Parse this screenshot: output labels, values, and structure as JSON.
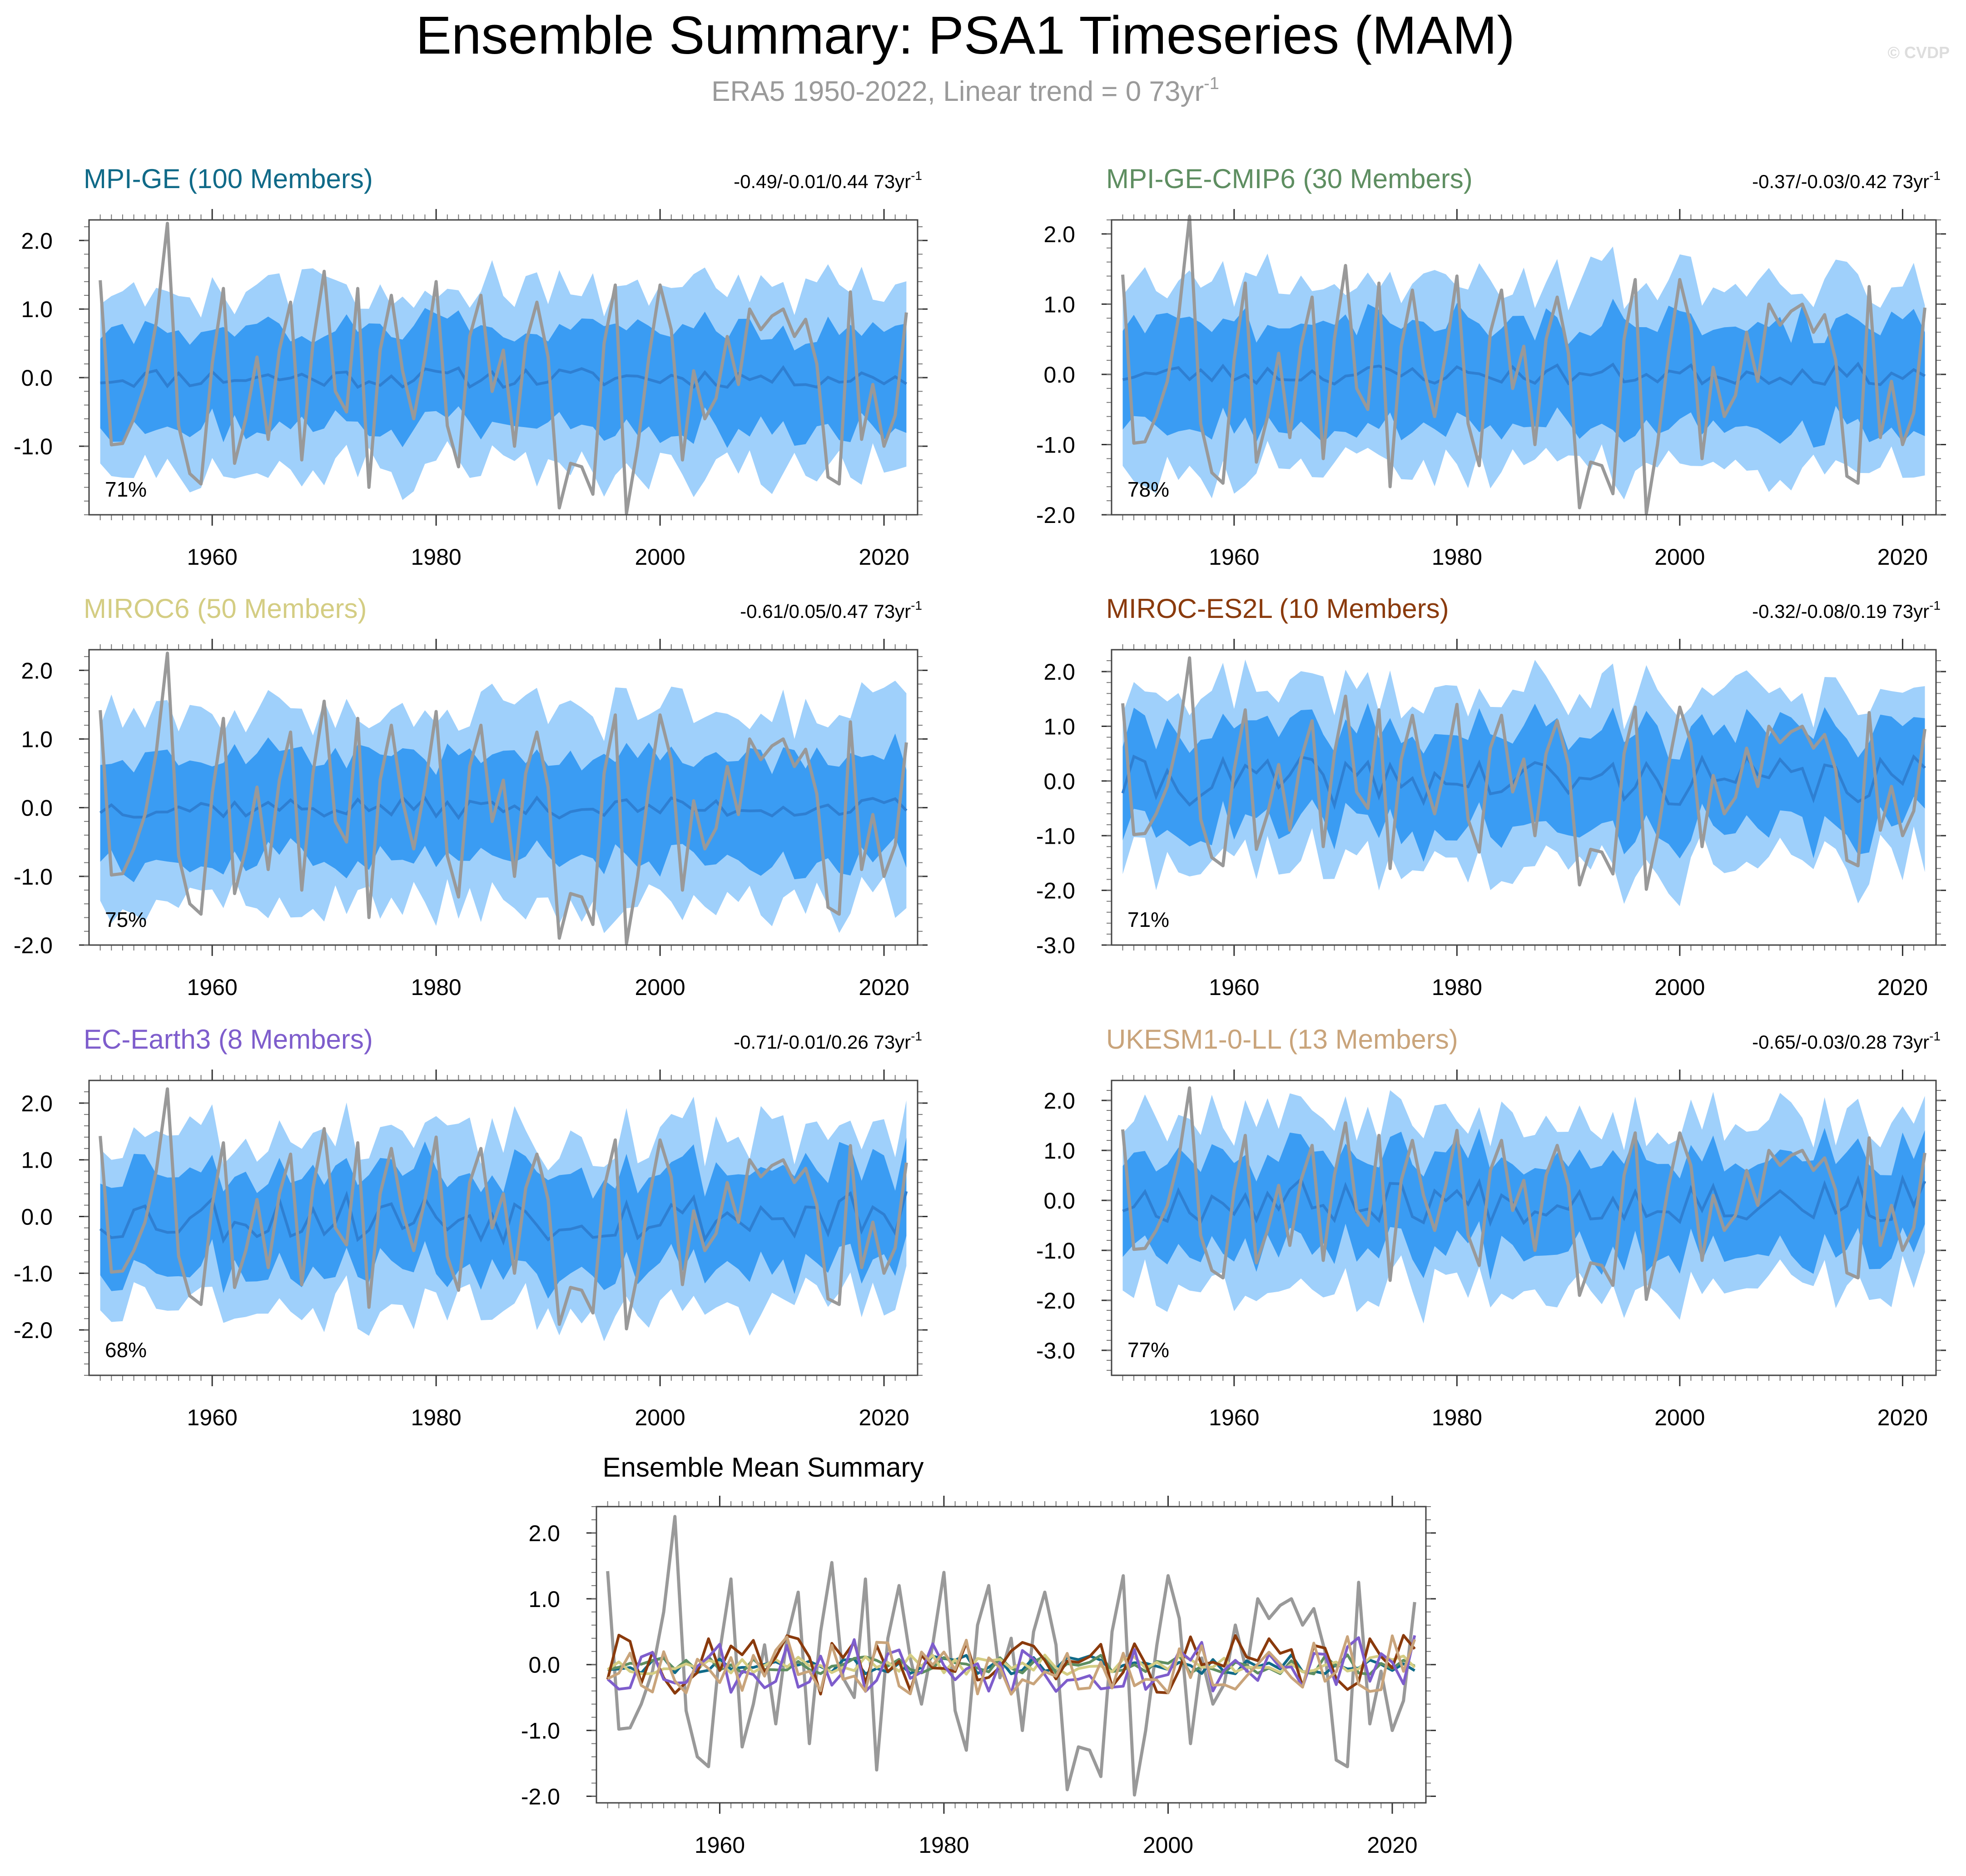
{
  "figure": {
    "title": "Ensemble Summary: PSA1 Timeseries (MAM)",
    "subtitle_text": "ERA5 1950-2022, Linear trend = 0 73yr",
    "subtitle_sup": "-1",
    "watermark": "© CVDP"
  },
  "colors": {
    "outer_band": "#9fd0fb",
    "inner_band": "#3a9cf3",
    "ensemble_mean": "#2e7fd2",
    "observations": "#999999",
    "axis": "#555555"
  },
  "chart_data": {
    "type": "line",
    "years": [
      1950,
      1951,
      1952,
      1953,
      1954,
      1955,
      1956,
      1957,
      1958,
      1959,
      1960,
      1961,
      1962,
      1963,
      1964,
      1965,
      1966,
      1967,
      1968,
      1969,
      1970,
      1971,
      1972,
      1973,
      1974,
      1975,
      1976,
      1977,
      1978,
      1979,
      1980,
      1981,
      1982,
      1983,
      1984,
      1985,
      1986,
      1987,
      1988,
      1989,
      1990,
      1991,
      1992,
      1993,
      1994,
      1995,
      1996,
      1997,
      1998,
      1999,
      2000,
      2001,
      2002,
      2003,
      2004,
      2005,
      2006,
      2007,
      2008,
      2009,
      2010,
      2011,
      2012,
      2013,
      2014,
      2015,
      2016,
      2017,
      2018,
      2019,
      2020,
      2021,
      2022
    ],
    "observations": {
      "name": "ERA5",
      "values": [
        1.42,
        -0.98,
        -0.96,
        -0.6,
        -0.1,
        0.8,
        2.25,
        -0.7,
        -1.4,
        -1.55,
        0.2,
        1.3,
        -1.25,
        -0.6,
        0.3,
        -0.9,
        0.4,
        1.1,
        -1.2,
        0.5,
        1.55,
        -0.2,
        -0.5,
        1.3,
        -1.6,
        0.4,
        1.2,
        0.1,
        -0.6,
        0.3,
        1.4,
        -0.7,
        -1.3,
        0.6,
        1.2,
        -0.2,
        0.4,
        -1.0,
        0.5,
        1.1,
        0.3,
        -1.9,
        -1.25,
        -1.3,
        -1.7,
        0.5,
        1.35,
        -1.98,
        -1.0,
        0.3,
        1.35,
        0.7,
        -1.2,
        0.1,
        -0.6,
        -0.3,
        0.6,
        -0.1,
        1.0,
        0.7,
        0.9,
        1.0,
        0.6,
        0.85,
        0.2,
        -1.45,
        -1.55,
        1.25,
        -0.9,
        -0.1,
        -1.0,
        -0.55,
        0.95
      ]
    },
    "panels": [
      {
        "name": "MPI-GE (100 Members)",
        "color": "#106a88",
        "trend": "-0.49/-0.01/0.44 73yr",
        "trend_sup": "-1",
        "pct": "71%",
        "ylim": [
          -2.0,
          2.3
        ],
        "yticks": [
          2.0,
          1.0,
          0.0,
          -1.0
        ],
        "amp": [
          1.3,
          0.7
        ],
        "seed": 11
      },
      {
        "name": "MPI-GE-CMIP6 (30 Members)",
        "color": "#5e8e61",
        "trend": "-0.37/-0.03/0.42 73yr",
        "trend_sup": "-1",
        "pct": "78%",
        "ylim": [
          -2.0,
          2.2
        ],
        "yticks": [
          2.0,
          1.0,
          0.0,
          -1.0,
          -2.0
        ],
        "amp": [
          1.35,
          0.75
        ],
        "seed": 23
      },
      {
        "name": "MIROC6 (50 Members)",
        "color": "#d4cd83",
        "trend": "-0.61/0.05/0.47 73yr",
        "trend_sup": "-1",
        "pct": "75%",
        "ylim": [
          -2.0,
          2.3
        ],
        "yticks": [
          2.0,
          1.0,
          0.0,
          -1.0,
          -2.0
        ],
        "amp": [
          1.4,
          0.75
        ],
        "seed": 37
      },
      {
        "name": "MIROC-ES2L (10 Members)",
        "color": "#8a3a0c",
        "trend": "-0.32/-0.08/0.19 73yr",
        "trend_sup": "-1",
        "pct": "71%",
        "ylim": [
          -3.0,
          2.4
        ],
        "yticks": [
          2.0,
          1.0,
          0.0,
          -1.0,
          -2.0,
          -3.0
        ],
        "amp": [
          1.6,
          0.9
        ],
        "seed": 41
      },
      {
        "name": "EC-Earth3 (8 Members)",
        "color": "#7e5dcc",
        "trend": "-0.71/-0.01/0.26 73yr",
        "trend_sup": "-1",
        "pct": "68%",
        "ylim": [
          -2.8,
          2.4
        ],
        "yticks": [
          2.0,
          1.0,
          0.0,
          -1.0,
          -2.0
        ],
        "amp": [
          1.55,
          0.85
        ],
        "seed": 53
      },
      {
        "name": "UKESM1-0-LL (13 Members)",
        "color": "#c9a47b",
        "trend": "-0.65/-0.03/0.28 73yr",
        "trend_sup": "-1",
        "pct": "77%",
        "ylim": [
          -3.5,
          2.4
        ],
        "yticks": [
          2.0,
          1.0,
          0.0,
          -1.0,
          -2.0,
          -3.0
        ],
        "amp": [
          1.7,
          0.95
        ],
        "seed": 67
      }
    ],
    "summary": {
      "title": "Ensemble Mean Summary",
      "ylim": [
        -2.1,
        2.4
      ],
      "yticks": [
        2.0,
        1.0,
        0.0,
        -1.0,
        -2.0
      ]
    },
    "xlim": [
      1949,
      2023
    ],
    "xticks": [
      1960,
      1980,
      2000,
      2020
    ]
  }
}
